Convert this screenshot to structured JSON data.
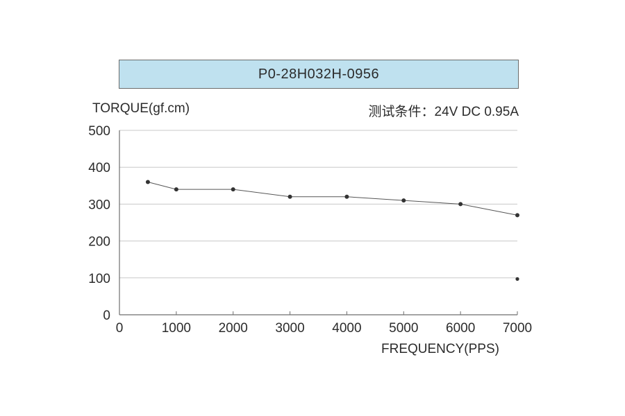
{
  "chart_data": {
    "type": "line",
    "title": "P0-28H032H-0956",
    "ylabel": "TORQUE(gf.cm)",
    "xlabel": "FREQUENCY(PPS)",
    "condition": "测试条件：24V DC   0.95A",
    "xlim": [
      0,
      7000
    ],
    "ylim": [
      0,
      500
    ],
    "x_ticks": [
      "0",
      "1000",
      "2000",
      "3000",
      "4000",
      "5000",
      "6000",
      "7000"
    ],
    "y_ticks": [
      "0",
      "100",
      "200",
      "300",
      "400",
      "500"
    ],
    "grid": true,
    "series": [
      {
        "x": [
          500,
          1000,
          2000,
          3000,
          4000,
          5000,
          6000,
          7000
        ],
        "y": [
          360,
          340,
          340,
          320,
          320,
          310,
          300,
          270
        ]
      }
    ],
    "extra_points": [
      {
        "x": 7000,
        "y": 97
      }
    ],
    "colors": {
      "banner": "#bfe1ef",
      "grid": "#c8c8c8",
      "axis": "#6e6e6e",
      "line": "#555555",
      "marker": "#333333"
    }
  }
}
